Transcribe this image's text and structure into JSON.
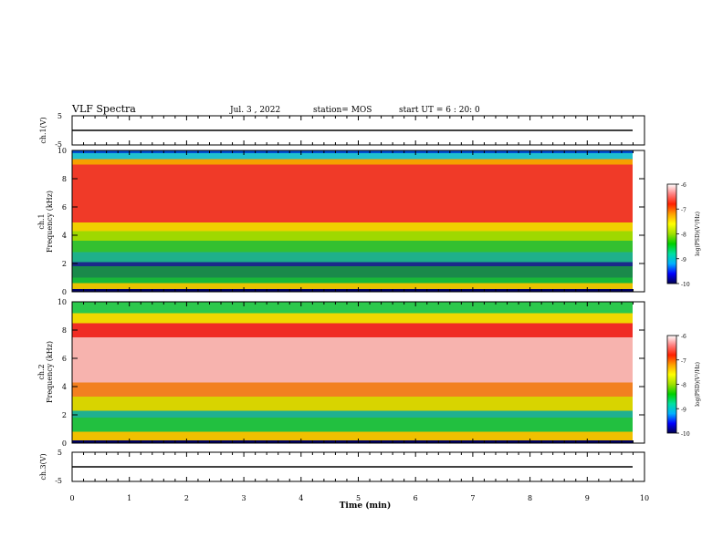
{
  "header": {
    "title": "VLF Spectra",
    "date": "Jul. 3 , 2022",
    "station": "station= MOS",
    "start": "start UT = 6 : 20: 0"
  },
  "chart_data": [
    {
      "type": "line",
      "panel": "ch1-waveform",
      "ylabel": "ch.1(V)",
      "ylim": [
        -5,
        5
      ],
      "yticks": [
        "5",
        "-5"
      ],
      "xlim": [
        0,
        10
      ],
      "series": [
        {
          "x": [
            0,
            9.83
          ],
          "values": [
            -1,
            -1
          ]
        }
      ]
    },
    {
      "type": "heatmap",
      "panel": "ch1-spectrogram",
      "ylabel": "ch.1\nFrequency (kHz)",
      "ylim": [
        0,
        10
      ],
      "yticks": [
        "0",
        "2",
        "4",
        "6",
        "8",
        "10"
      ],
      "xlim": [
        0,
        9.83
      ],
      "bands": [
        {
          "f": [
            0.0,
            0.2
          ],
          "color": "#000060"
        },
        {
          "f": [
            0.2,
            0.6
          ],
          "color": "#e8c200"
        },
        {
          "f": [
            0.6,
            1.0
          ],
          "color": "#19b838"
        },
        {
          "f": [
            1.0,
            1.8
          ],
          "color": "#1a8a4a"
        },
        {
          "f": [
            1.8,
            2.1
          ],
          "color": "#1b2a8a"
        },
        {
          "f": [
            2.1,
            2.8
          ],
          "color": "#1fb08a"
        },
        {
          "f": [
            2.8,
            3.6
          ],
          "color": "#34c030"
        },
        {
          "f": [
            3.6,
            4.3
          ],
          "color": "#9fd800"
        },
        {
          "f": [
            4.3,
            4.9
          ],
          "color": "#f0d000"
        },
        {
          "f": [
            4.9,
            9.0
          ],
          "color": "#f03a28"
        },
        {
          "f": [
            9.0,
            9.4
          ],
          "color": "#f6a000"
        },
        {
          "f": [
            9.4,
            9.8
          ],
          "color": "#20c0d0"
        },
        {
          "f": [
            9.8,
            10.0
          ],
          "color": "#0050d0"
        }
      ]
    },
    {
      "type": "heatmap",
      "panel": "ch2-spectrogram",
      "ylabel": "ch.2\nFrequency (kHz)",
      "ylim": [
        0,
        10
      ],
      "yticks": [
        "0",
        "2",
        "4",
        "6",
        "8",
        "10"
      ],
      "xlim": [
        0,
        9.83
      ],
      "bands": [
        {
          "f": [
            0.0,
            0.2
          ],
          "color": "#000060"
        },
        {
          "f": [
            0.2,
            0.8
          ],
          "color": "#f0c000"
        },
        {
          "f": [
            0.8,
            1.8
          ],
          "color": "#22c040"
        },
        {
          "f": [
            1.8,
            2.3
          ],
          "color": "#1fb090"
        },
        {
          "f": [
            2.3,
            3.3
          ],
          "color": "#d8d400"
        },
        {
          "f": [
            3.3,
            4.3
          ],
          "color": "#f28020"
        },
        {
          "f": [
            4.3,
            7.5
          ],
          "color": "#f7b3ae"
        },
        {
          "f": [
            7.5,
            8.5
          ],
          "color": "#f02c24"
        },
        {
          "f": [
            8.5,
            9.2
          ],
          "color": "#f0d800"
        },
        {
          "f": [
            9.2,
            10.0
          ],
          "color": "#2cc84c"
        }
      ]
    },
    {
      "type": "line",
      "panel": "ch3-waveform",
      "ylabel": "ch.3(V)",
      "ylim": [
        -5,
        5
      ],
      "yticks": [
        "5",
        "-5"
      ],
      "xlim": [
        0,
        10
      ],
      "series": [
        {
          "x": [
            0,
            9.83
          ],
          "values": [
            -1,
            -1
          ]
        }
      ]
    }
  ],
  "xaxis": {
    "label": "Time (min)",
    "ticks": [
      "0",
      "1",
      "2",
      "3",
      "4",
      "5",
      "6",
      "7",
      "8",
      "9",
      "10"
    ],
    "range": [
      0,
      10
    ]
  },
  "colorbar": {
    "label": "log(PSD)(V²/Hz)",
    "range": [
      -10,
      -6
    ],
    "ticks": [
      "-6",
      "-7",
      "-8",
      "-9",
      "-10"
    ],
    "stops": [
      "#000050",
      "#0000ff",
      "#00b0ff",
      "#00e0a0",
      "#00d000",
      "#a0e000",
      "#ffff00",
      "#ffa000",
      "#ff2000",
      "#ff8080",
      "#ffffff"
    ]
  }
}
